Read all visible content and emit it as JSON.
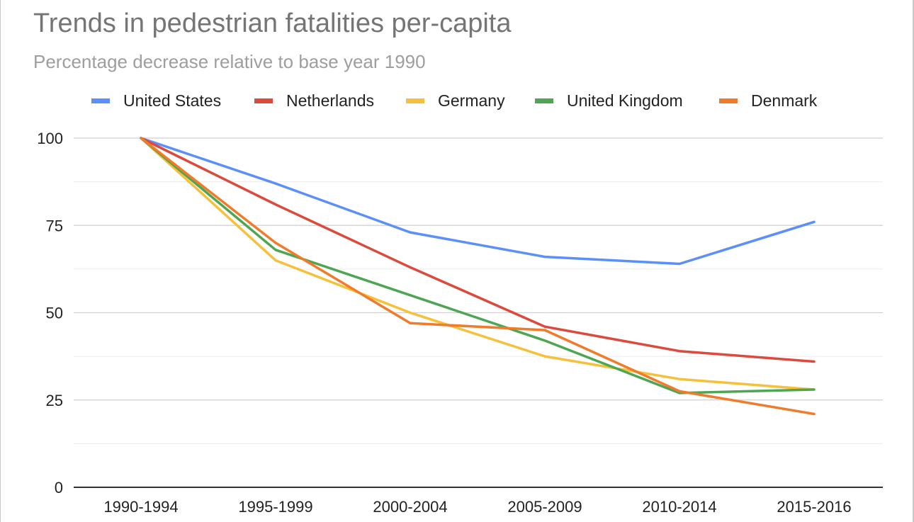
{
  "chart_data": {
    "type": "line",
    "title": "Trends in pedestrian fatalities per-capita",
    "subtitle": "Percentage decrease relative to base year 1990",
    "xlabel": "",
    "ylabel": "",
    "categories": [
      "1990-1994",
      "1995-1999",
      "2000-2004",
      "2005-2009",
      "2010-2014",
      "2015-2016"
    ],
    "ylim": [
      0,
      100
    ],
    "yticks": [
      0,
      25,
      50,
      75,
      100
    ],
    "grid": true,
    "legend_position": "top",
    "series": [
      {
        "name": "United States",
        "color": "#5b8ff9",
        "values": [
          100,
          87,
          73,
          66,
          64,
          76
        ]
      },
      {
        "name": "Netherlands",
        "color": "#db4a3c",
        "values": [
          100,
          81,
          63,
          46,
          39,
          36
        ]
      },
      {
        "name": "Germany",
        "color": "#f6c03a",
        "values": [
          100,
          65,
          50,
          37.5,
          31,
          28
        ]
      },
      {
        "name": "United Kingdom",
        "color": "#4ea653",
        "values": [
          100,
          68,
          55,
          42,
          27,
          28
        ]
      },
      {
        "name": "Denmark",
        "color": "#f07b2a",
        "values": [
          100,
          70,
          47,
          45,
          27.5,
          21
        ]
      }
    ]
  }
}
